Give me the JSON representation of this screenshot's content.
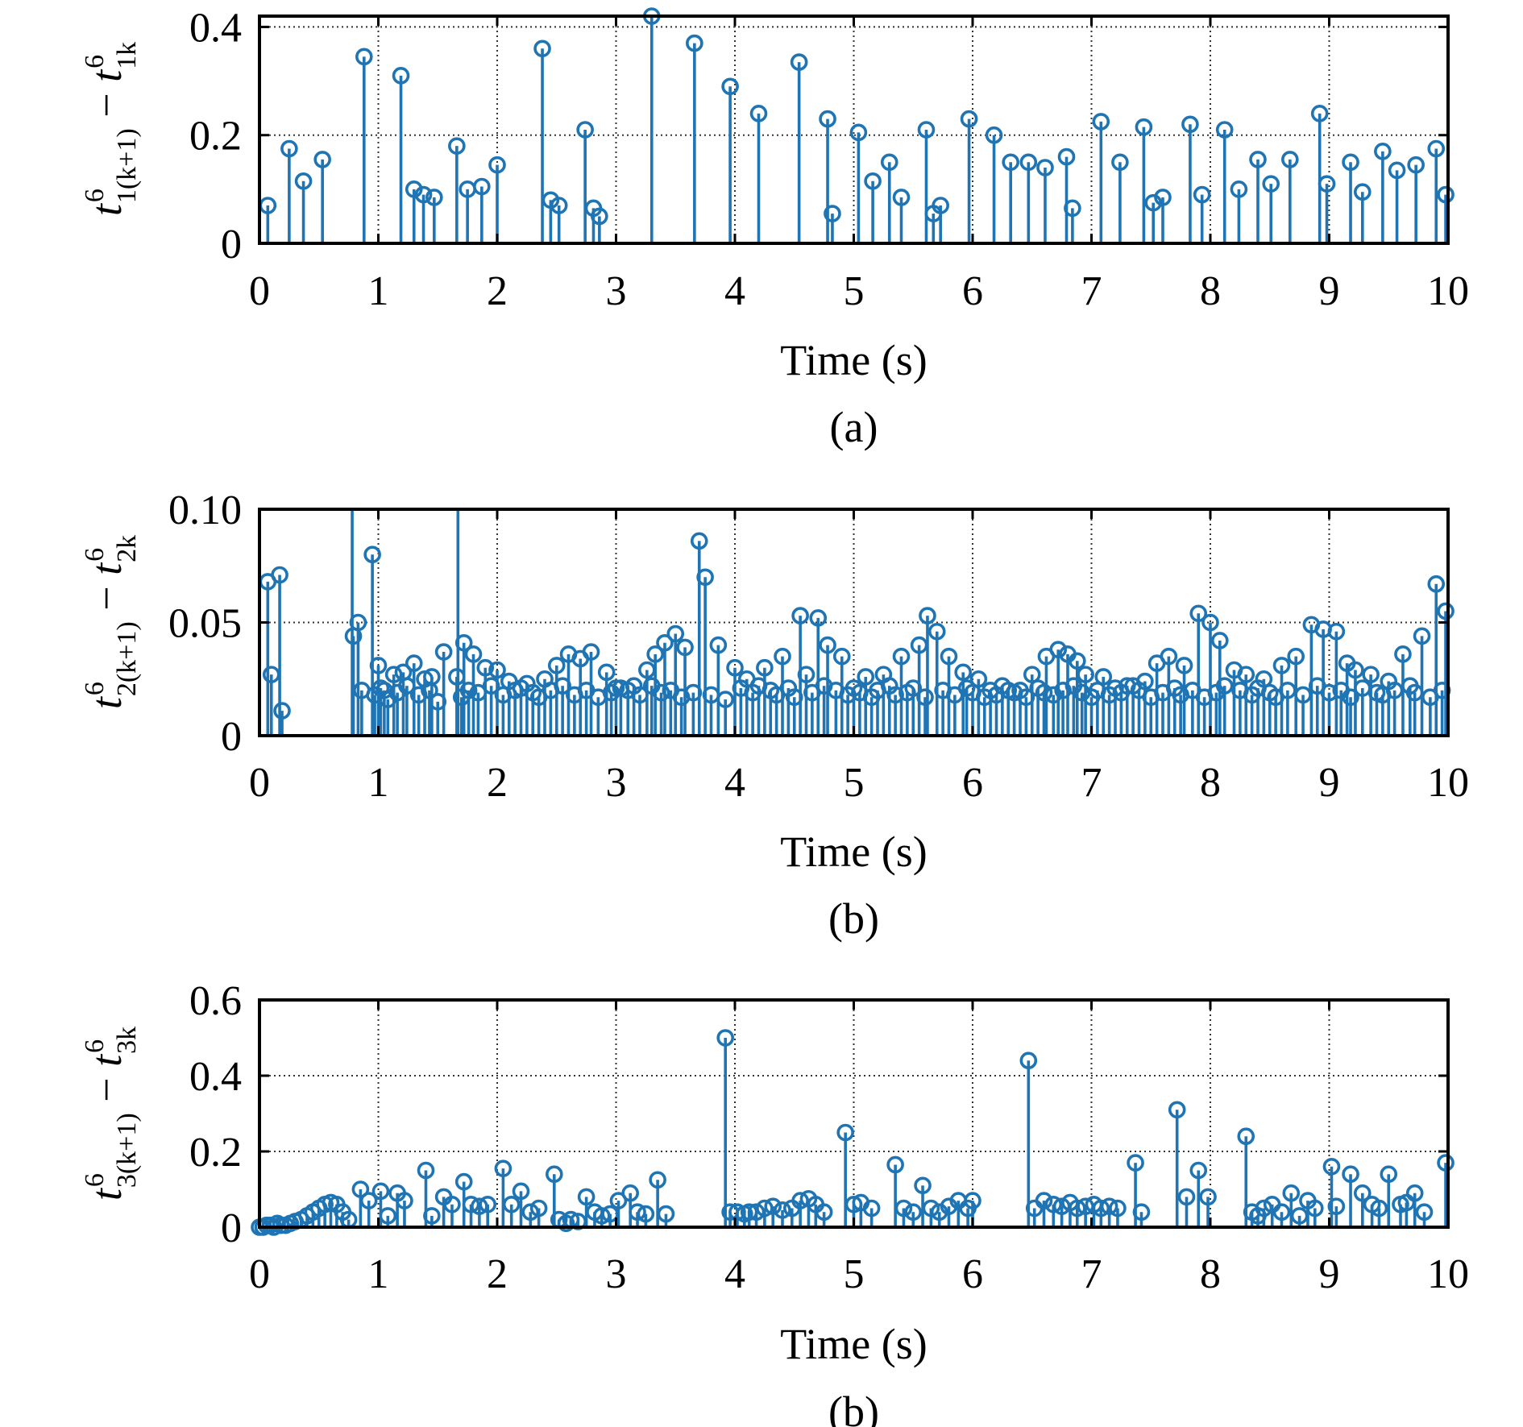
{
  "style": {
    "series_color": "#1f74b4"
  },
  "chart_data": [
    {
      "type": "stem",
      "caption": "(a)",
      "xlabel": "Time (s)",
      "ylabel": {
        "base": "t",
        "sup": "6",
        "sub1": "1(k+1)",
        "minus": "−",
        "sub2": "1k"
      },
      "xlim": [
        0,
        10
      ],
      "ylim": [
        0,
        0.42
      ],
      "xticks": [
        "0",
        "1",
        "2",
        "3",
        "4",
        "5",
        "6",
        "7",
        "8",
        "9",
        "10"
      ],
      "yticks": [
        {
          "v": 0,
          "label": "0"
        },
        {
          "v": 0.2,
          "label": "0.2"
        },
        {
          "v": 0.4,
          "label": "0.4"
        }
      ],
      "grid": true,
      "x": [
        0.07,
        0.25,
        0.37,
        0.53,
        0.88,
        1.19,
        1.3,
        1.38,
        1.47,
        1.66,
        1.75,
        1.87,
        2.0,
        2.38,
        2.45,
        2.52,
        2.74,
        2.81,
        2.86,
        3.3,
        3.66,
        3.96,
        4.2,
        4.54,
        4.78,
        4.82,
        5.04,
        5.16,
        5.3,
        5.4,
        5.61,
        5.67,
        5.73,
        5.97,
        6.18,
        6.32,
        6.47,
        6.61,
        6.79,
        6.84,
        7.08,
        7.24,
        7.44,
        7.52,
        7.6,
        7.83,
        7.93,
        8.12,
        8.24,
        8.4,
        8.51,
        8.67,
        8.92,
        8.98,
        9.18,
        9.28,
        9.45,
        9.57,
        9.73,
        9.9,
        9.98
      ],
      "y": [
        0.07,
        0.175,
        0.115,
        0.155,
        0.345,
        0.31,
        0.1,
        0.09,
        0.085,
        0.18,
        0.1,
        0.105,
        0.145,
        0.36,
        0.08,
        0.07,
        0.21,
        0.065,
        0.05,
        0.42,
        0.37,
        0.29,
        0.24,
        0.335,
        0.23,
        0.055,
        0.205,
        0.115,
        0.15,
        0.085,
        0.21,
        0.055,
        0.07,
        0.23,
        0.2,
        0.15,
        0.15,
        0.14,
        0.16,
        0.065,
        0.225,
        0.15,
        0.215,
        0.075,
        0.085,
        0.22,
        0.09,
        0.21,
        0.1,
        0.155,
        0.11,
        0.155,
        0.24,
        0.11,
        0.15,
        0.095,
        0.17,
        0.135,
        0.145,
        0.175,
        0.09
      ]
    },
    {
      "type": "stem",
      "caption": "(b)",
      "xlabel": "Time (s)",
      "ylabel": {
        "base": "t",
        "sup": "6",
        "sub1": "2(k+1)",
        "minus": "−",
        "sub2": "2k"
      },
      "xlim": [
        0,
        10
      ],
      "ylim": [
        0,
        0.1
      ],
      "xticks": [
        "0",
        "1",
        "2",
        "3",
        "4",
        "5",
        "6",
        "7",
        "8",
        "9",
        "10"
      ],
      "yticks": [
        {
          "v": 0,
          "label": "0"
        },
        {
          "v": 0.05,
          "label": "0.05"
        },
        {
          "v": 0.1,
          "label": "0.10"
        }
      ],
      "grid": true,
      "x": [
        0.07,
        0.1,
        0.17,
        0.19,
        0.79,
        0.83,
        0.86,
        0.95,
        1.0,
        1.05,
        1.13,
        1.21,
        1.3,
        1.39,
        1.45,
        1.55,
        1.66,
        1.72,
        1.8,
        1.9,
        2.0,
        2.1,
        2.25,
        2.4,
        2.5,
        2.6,
        2.7,
        2.79,
        2.92,
        3.04,
        3.15,
        3.26,
        3.33,
        3.41,
        3.5,
        3.58,
        3.7,
        3.75,
        3.86,
        4.0,
        4.1,
        4.25,
        4.4,
        4.55,
        4.6,
        4.7,
        4.78,
        4.9,
        5.1,
        5.25,
        5.4,
        5.55,
        5.62,
        5.7,
        5.8,
        5.92,
        6.05,
        6.3,
        6.5,
        6.62,
        6.72,
        6.8,
        6.88,
        6.95,
        7.1,
        7.3,
        7.45,
        7.55,
        7.65,
        7.78,
        7.9,
        8.0,
        8.08,
        8.2,
        8.3,
        8.45,
        8.6,
        8.72,
        8.85,
        8.95,
        9.06,
        9.15,
        9.22,
        9.35,
        9.5,
        9.62,
        9.78,
        9.9,
        9.98
      ],
      "y": [
        0.068,
        0.027,
        0.071,
        0.011,
        0.044,
        0.05,
        0.02,
        0.08,
        0.031,
        0.02,
        0.027,
        0.028,
        0.032,
        0.025,
        0.026,
        0.037,
        0.026,
        0.041,
        0.036,
        0.03,
        0.029,
        0.024,
        0.023,
        0.025,
        0.031,
        0.036,
        0.034,
        0.037,
        0.028,
        0.021,
        0.022,
        0.029,
        0.036,
        0.041,
        0.045,
        0.039,
        0.086,
        0.07,
        0.04,
        0.03,
        0.025,
        0.03,
        0.035,
        0.053,
        0.027,
        0.052,
        0.04,
        0.035,
        0.026,
        0.027,
        0.035,
        0.04,
        0.053,
        0.046,
        0.035,
        0.028,
        0.025,
        0.02,
        0.027,
        0.035,
        0.038,
        0.036,
        0.033,
        0.027,
        0.026,
        0.022,
        0.024,
        0.032,
        0.035,
        0.031,
        0.054,
        0.05,
        0.042,
        0.029,
        0.027,
        0.025,
        0.031,
        0.035,
        0.049,
        0.047,
        0.046,
        0.032,
        0.029,
        0.027,
        0.024,
        0.036,
        0.044,
        0.067,
        0.055
      ],
      "dense_x": [
        0.97,
        1.02,
        1.08,
        1.16,
        1.24,
        1.34,
        1.43,
        1.5,
        1.7,
        1.76,
        1.84,
        1.95,
        2.05,
        2.15,
        2.2,
        2.3,
        2.35,
        2.45,
        2.55,
        2.65,
        2.75,
        2.85,
        2.96,
        3.0,
        3.1,
        3.2,
        3.3,
        3.38,
        3.46,
        3.55,
        3.65,
        3.8,
        3.92,
        4.05,
        4.15,
        4.2,
        4.3,
        4.35,
        4.45,
        4.5,
        4.65,
        4.75,
        4.85,
        4.95,
        5.0,
        5.05,
        5.15,
        5.2,
        5.3,
        5.35,
        5.45,
        5.5,
        5.6,
        5.75,
        5.85,
        5.95,
        6.0,
        6.1,
        6.15,
        6.2,
        6.25,
        6.35,
        6.4,
        6.45,
        6.55,
        6.6,
        6.68,
        6.76,
        6.85,
        6.92,
        7.0,
        7.05,
        7.15,
        7.2,
        7.25,
        7.35,
        7.4,
        7.5,
        7.6,
        7.7,
        7.75,
        7.85,
        7.95,
        8.05,
        8.12,
        8.25,
        8.35,
        8.4,
        8.5,
        8.55,
        8.65,
        8.78,
        8.9,
        9.0,
        9.1,
        9.18,
        9.28,
        9.4,
        9.45,
        9.55,
        9.68,
        9.72,
        9.85,
        9.95
      ],
      "dense_y": [
        0.018,
        0.021,
        0.016,
        0.019,
        0.022,
        0.018,
        0.02,
        0.015,
        0.017,
        0.02,
        0.019,
        0.022,
        0.018,
        0.02,
        0.021,
        0.019,
        0.017,
        0.02,
        0.022,
        0.018,
        0.02,
        0.017,
        0.019,
        0.021,
        0.02,
        0.018,
        0.022,
        0.019,
        0.02,
        0.017,
        0.019,
        0.018,
        0.016,
        0.021,
        0.019,
        0.022,
        0.02,
        0.018,
        0.021,
        0.017,
        0.019,
        0.022,
        0.02,
        0.018,
        0.021,
        0.019,
        0.017,
        0.02,
        0.022,
        0.018,
        0.019,
        0.021,
        0.017,
        0.02,
        0.018,
        0.021,
        0.019,
        0.017,
        0.02,
        0.018,
        0.022,
        0.019,
        0.02,
        0.017,
        0.021,
        0.019,
        0.018,
        0.02,
        0.022,
        0.019,
        0.017,
        0.02,
        0.018,
        0.021,
        0.019,
        0.022,
        0.02,
        0.017,
        0.019,
        0.021,
        0.018,
        0.02,
        0.017,
        0.019,
        0.022,
        0.02,
        0.018,
        0.021,
        0.019,
        0.017,
        0.02,
        0.018,
        0.022,
        0.019,
        0.02,
        0.017,
        0.021,
        0.019,
        0.018,
        0.02,
        0.022,
        0.019,
        0.017,
        0.02
      ]
    },
    {
      "type": "stem",
      "caption": "(b)",
      "xlabel": "Time (s)",
      "ylabel": {
        "base": "t",
        "sup": "6",
        "sub1": "3(k+1)",
        "minus": "−",
        "sub2": "3k"
      },
      "xlim": [
        0,
        10
      ],
      "ylim": [
        0,
        0.6
      ],
      "xticks": [
        "0",
        "1",
        "2",
        "3",
        "4",
        "5",
        "6",
        "7",
        "8",
        "9",
        "10"
      ],
      "yticks": [
        {
          "v": 0,
          "label": "0"
        },
        {
          "v": 0.2,
          "label": "0.2"
        },
        {
          "v": 0.4,
          "label": "0.4"
        },
        {
          "v": 0.6,
          "label": "0.6"
        }
      ],
      "grid": true,
      "x": [
        0.0,
        0.03,
        0.06,
        0.09,
        0.12,
        0.15,
        0.18,
        0.22,
        0.26,
        0.3,
        0.35,
        0.4,
        0.45,
        0.5,
        0.55,
        0.6,
        0.65,
        0.7,
        0.75,
        0.85,
        0.92,
        1.02,
        1.08,
        1.16,
        1.22,
        1.4,
        1.45,
        1.55,
        1.62,
        1.72,
        1.78,
        1.85,
        1.92,
        2.05,
        2.12,
        2.2,
        2.28,
        2.35,
        2.48,
        2.52,
        2.58,
        2.62,
        2.68,
        2.75,
        2.82,
        2.88,
        2.95,
        3.02,
        3.12,
        3.18,
        3.25,
        3.35,
        3.42,
        3.92,
        3.96,
        4.02,
        4.08,
        4.12,
        4.18,
        4.25,
        4.32,
        4.4,
        4.48,
        4.55,
        4.62,
        4.68,
        4.75,
        4.93,
        5.0,
        5.06,
        5.15,
        5.35,
        5.42,
        5.5,
        5.58,
        5.65,
        5.72,
        5.8,
        5.88,
        5.96,
        6.0,
        6.47,
        6.52,
        6.6,
        6.68,
        6.75,
        6.82,
        6.88,
        6.95,
        7.02,
        7.08,
        7.15,
        7.22,
        7.37,
        7.42,
        7.72,
        7.8,
        7.9,
        7.98,
        8.3,
        8.35,
        8.4,
        8.45,
        8.52,
        8.6,
        8.68,
        8.75,
        8.82,
        8.88,
        9.02,
        9.06,
        9.18,
        9.28,
        9.36,
        9.42,
        9.5,
        9.6,
        9.65,
        9.72,
        9.8,
        9.98
      ],
      "y": [
        0.0,
        0.0,
        0.005,
        0.005,
        0.0,
        0.01,
        0.005,
        0.005,
        0.01,
        0.015,
        0.02,
        0.03,
        0.04,
        0.05,
        0.06,
        0.065,
        0.06,
        0.04,
        0.02,
        0.1,
        0.07,
        0.095,
        0.03,
        0.09,
        0.07,
        0.15,
        0.03,
        0.08,
        0.06,
        0.12,
        0.06,
        0.055,
        0.06,
        0.155,
        0.06,
        0.095,
        0.04,
        0.05,
        0.14,
        0.02,
        0.01,
        0.02,
        0.015,
        0.08,
        0.04,
        0.03,
        0.035,
        0.07,
        0.09,
        0.04,
        0.035,
        0.125,
        0.035,
        0.5,
        0.04,
        0.04,
        0.035,
        0.04,
        0.04,
        0.05,
        0.055,
        0.045,
        0.05,
        0.07,
        0.075,
        0.06,
        0.04,
        0.25,
        0.06,
        0.065,
        0.05,
        0.165,
        0.05,
        0.04,
        0.11,
        0.05,
        0.04,
        0.055,
        0.07,
        0.05,
        0.07,
        0.44,
        0.05,
        0.07,
        0.06,
        0.055,
        0.065,
        0.05,
        0.055,
        0.06,
        0.05,
        0.055,
        0.05,
        0.17,
        0.04,
        0.31,
        0.08,
        0.15,
        0.08,
        0.24,
        0.04,
        0.03,
        0.05,
        0.06,
        0.04,
        0.09,
        0.03,
        0.07,
        0.05,
        0.16,
        0.055,
        0.14,
        0.09,
        0.06,
        0.05,
        0.14,
        0.06,
        0.065,
        0.09,
        0.04,
        0.17
      ]
    }
  ]
}
